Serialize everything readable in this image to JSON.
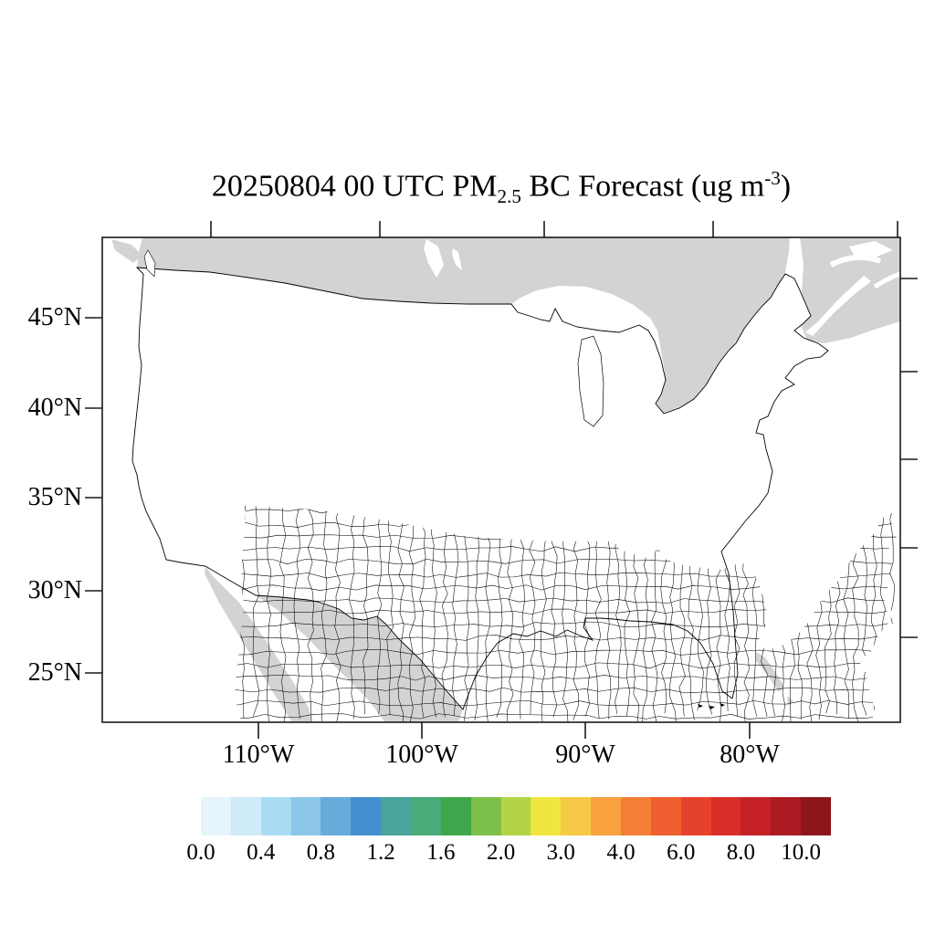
{
  "figure": {
    "title": {
      "prefix": "20250804 00 UTC PM",
      "subscript": "2.5",
      "middle": " BC Forecast (ug m",
      "superscript": "-3",
      "suffix": ")"
    },
    "y_axis": {
      "tick_labels": [
        "45°N",
        "40°N",
        "35°N",
        "30°N",
        "25°N"
      ]
    },
    "x_axis": {
      "tick_labels": [
        "110°W",
        "100°W",
        "90°W",
        "80°W"
      ]
    },
    "colorbar": {
      "labels": [
        "0.0",
        "0.4",
        "0.8",
        "1.2",
        "1.6",
        "2.0",
        "3.0",
        "4.0",
        "6.0",
        "8.0",
        "10.0"
      ],
      "colors": [
        "#e6f4fb",
        "#cfeaf8",
        "#a9dcf3",
        "#8cc6e8",
        "#67abdb",
        "#438fd0",
        "#48a49c",
        "#49ab79",
        "#3ea74b",
        "#7cc04a",
        "#b3d545",
        "#f1e63f",
        "#f6c946",
        "#f7a23e",
        "#f47e35",
        "#ee5e2e",
        "#e6422b",
        "#d92d28",
        "#c52127",
        "#ab1c22",
        "#8c161b"
      ]
    },
    "map": {
      "outside_land_color": "#d3d3d3",
      "us_fill": "#ffffff",
      "boundary_color": "#000000"
    }
  }
}
